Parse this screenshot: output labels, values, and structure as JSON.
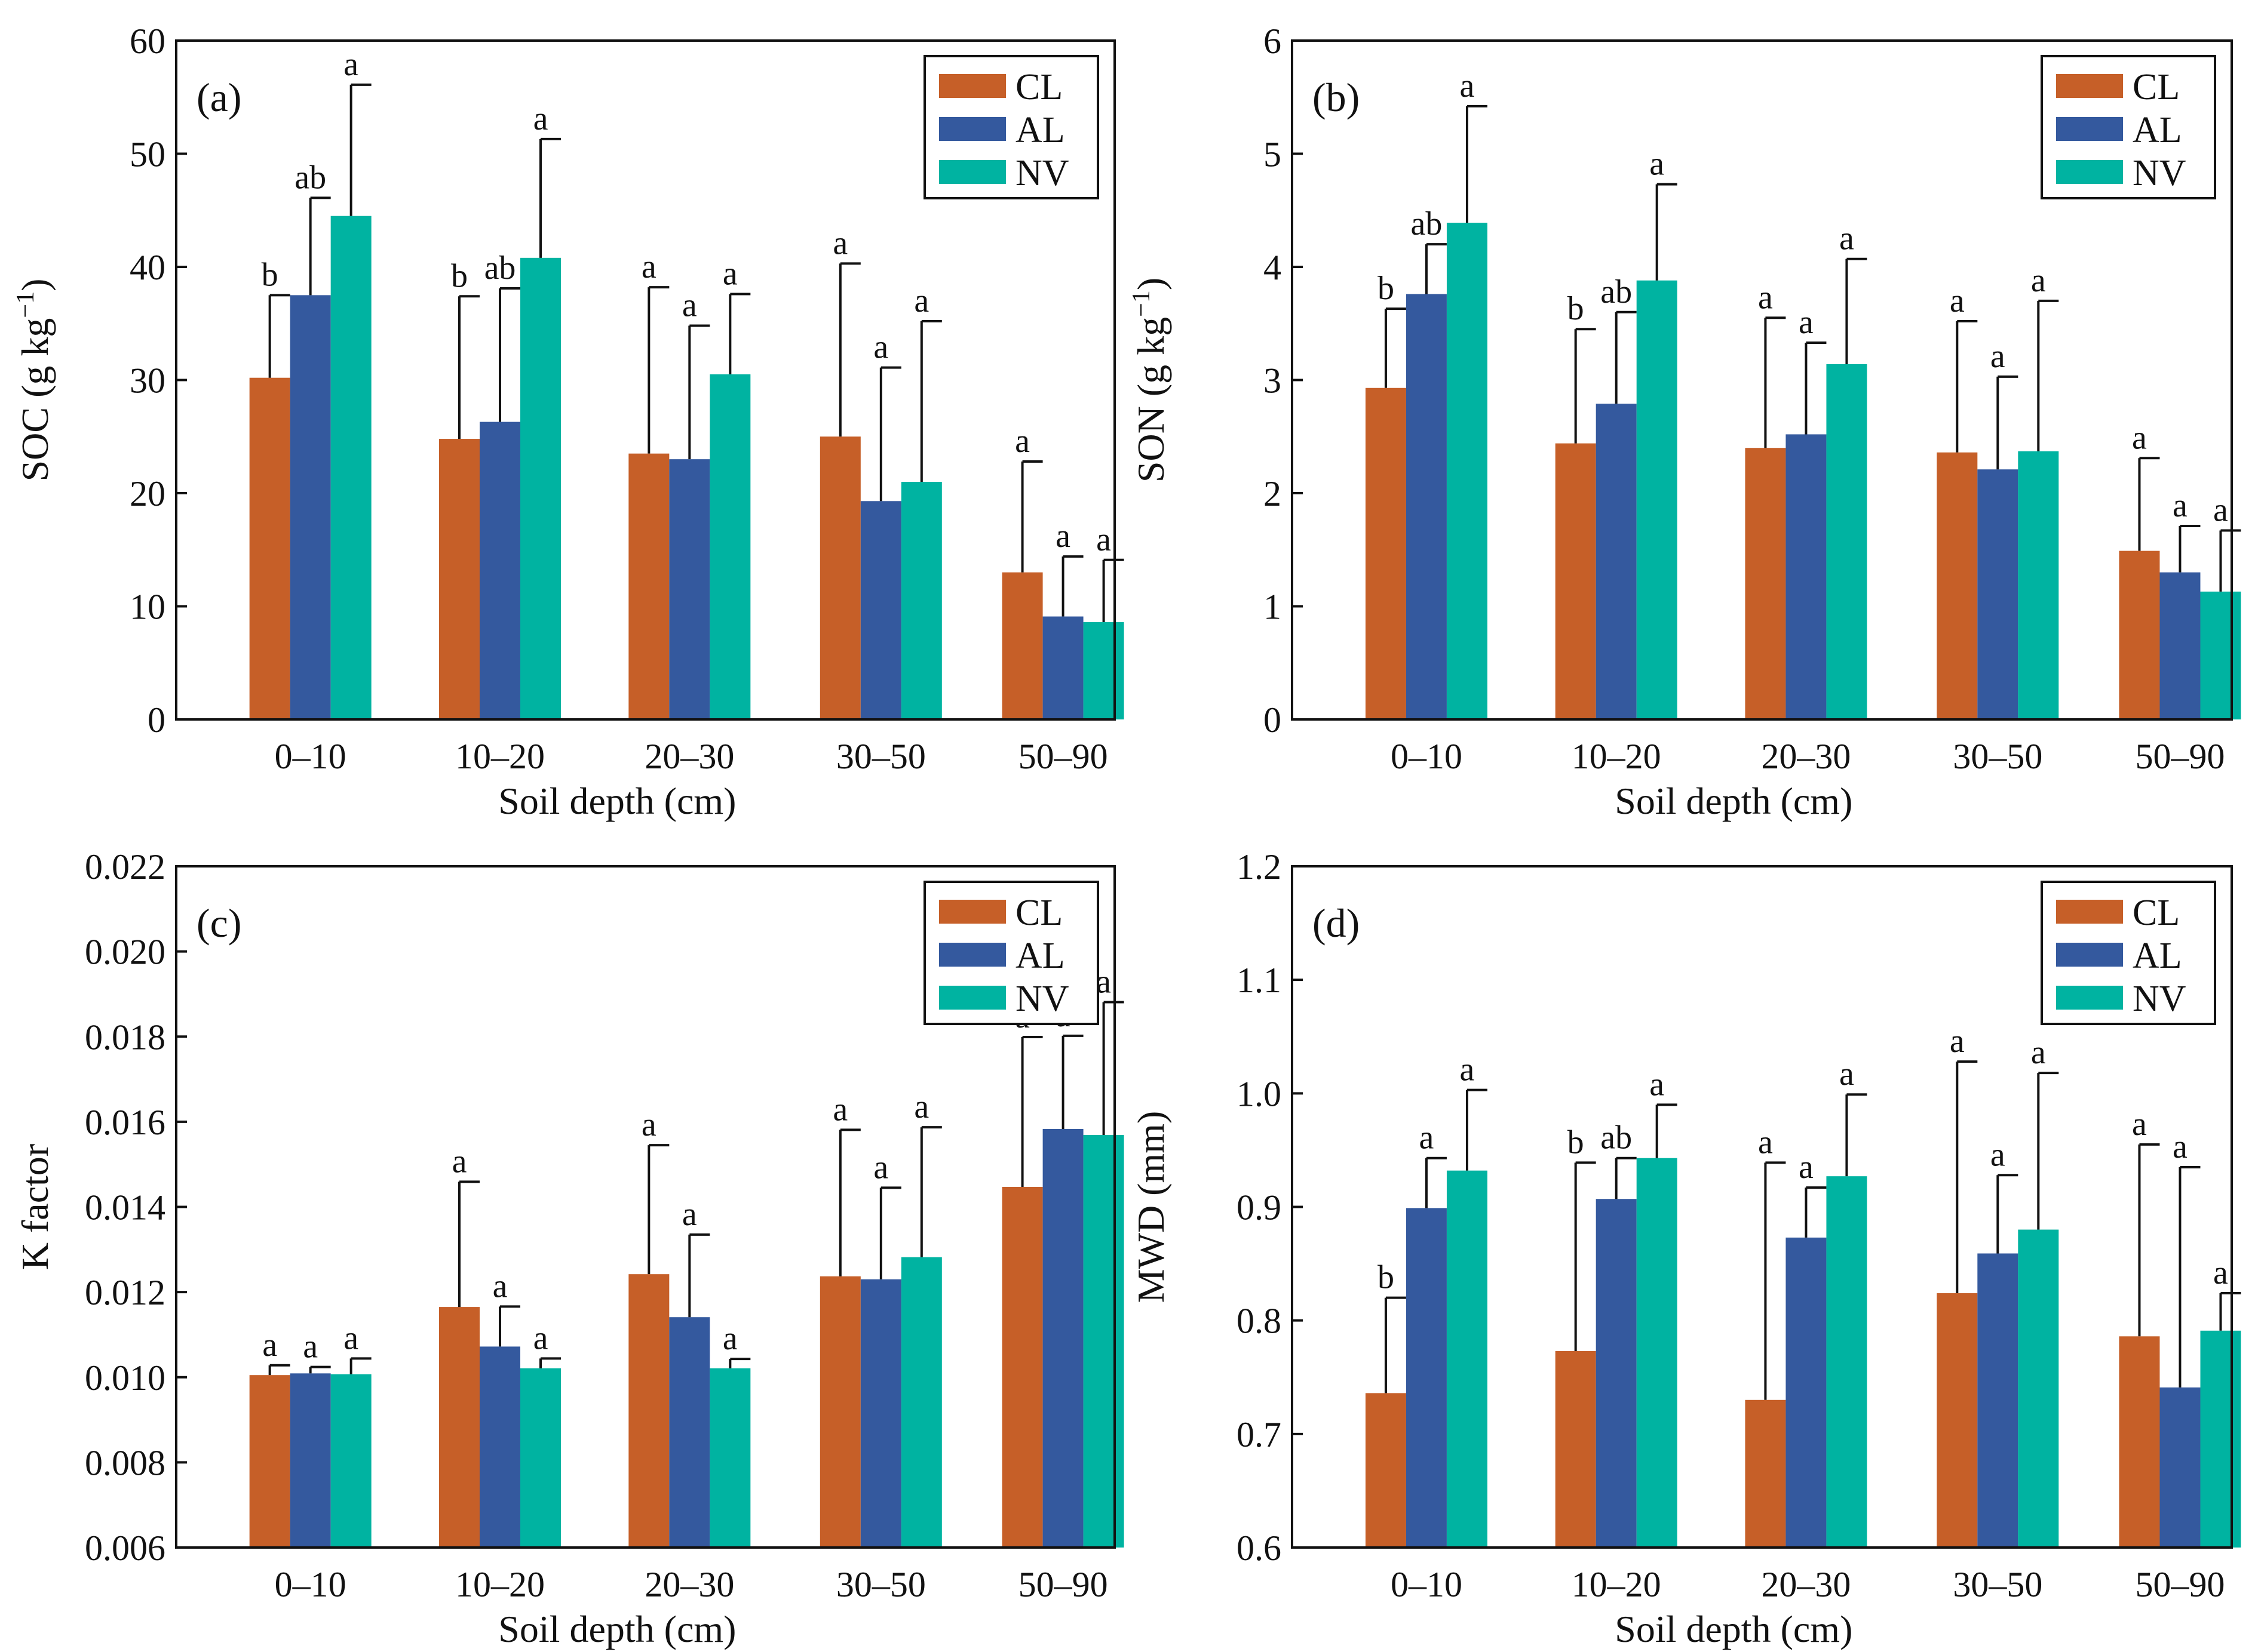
{
  "colors": {
    "CL": "#c65f28",
    "AL": "#34599e",
    "NV": "#00b3a1"
  },
  "chart_data": [
    {
      "id": "a",
      "type": "bar",
      "label": "(a)",
      "categories": [
        "0–10",
        "10–20",
        "20–30",
        "30–50",
        "50–90"
      ],
      "xlabel": "Soil depth (cm)",
      "ylabel": {
        "main": "SOC (g kg",
        "sup": "−1",
        "close": ")"
      },
      "ylim": [
        0,
        60
      ],
      "yticks": [
        0,
        10,
        20,
        30,
        40,
        50,
        60
      ],
      "ytick_labels": [
        "0",
        "10",
        "20",
        "30",
        "40",
        "50",
        "60"
      ],
      "legend": [
        "CL",
        "AL",
        "NV"
      ],
      "legend_position": "top-right",
      "series": [
        {
          "name": "CL",
          "values": [
            30.2,
            24.8,
            23.5,
            25.0,
            13.0
          ],
          "err": [
            37.5,
            37.4,
            38.2,
            40.3,
            22.8
          ],
          "sig": [
            "b",
            "b",
            "a",
            "a",
            "a"
          ]
        },
        {
          "name": "AL",
          "values": [
            37.5,
            26.3,
            23.0,
            19.3,
            9.1
          ],
          "err": [
            46.1,
            38.1,
            34.8,
            31.1,
            14.4
          ],
          "sig": [
            "ab",
            "ab",
            "a",
            "a",
            "a"
          ]
        },
        {
          "name": "NV",
          "values": [
            44.5,
            40.8,
            30.5,
            21.0,
            8.6
          ],
          "err": [
            56.1,
            51.3,
            37.6,
            35.2,
            14.1
          ],
          "sig": [
            "a",
            "a",
            "a",
            "a",
            "a"
          ]
        }
      ]
    },
    {
      "id": "b",
      "type": "bar",
      "label": "(b)",
      "categories": [
        "0–10",
        "10–20",
        "20–30",
        "30–50",
        "50–90"
      ],
      "xlabel": "Soil depth (cm)",
      "ylabel": {
        "main": "SON (g kg",
        "sup": "−1",
        "close": ")"
      },
      "ylim": [
        0,
        6
      ],
      "yticks": [
        0,
        1,
        2,
        3,
        4,
        5,
        6
      ],
      "ytick_labels": [
        "0",
        "1",
        "2",
        "3",
        "4",
        "5",
        "6"
      ],
      "legend": [
        "CL",
        "AL",
        "NV"
      ],
      "legend_position": "top-right",
      "series": [
        {
          "name": "CL",
          "values": [
            2.93,
            2.44,
            2.4,
            2.36,
            1.49
          ],
          "err": [
            3.63,
            3.45,
            3.55,
            3.52,
            2.31
          ],
          "sig": [
            "b",
            "b",
            "a",
            "a",
            "a"
          ]
        },
        {
          "name": "AL",
          "values": [
            3.76,
            2.79,
            2.52,
            2.21,
            1.3
          ],
          "err": [
            4.2,
            3.6,
            3.33,
            3.03,
            1.71
          ],
          "sig": [
            "ab",
            "ab",
            "a",
            "a",
            "a"
          ]
        },
        {
          "name": "NV",
          "values": [
            4.39,
            3.88,
            3.14,
            2.37,
            1.13
          ],
          "err": [
            5.42,
            4.73,
            4.07,
            3.7,
            1.67
          ],
          "sig": [
            "a",
            "a",
            "a",
            "a",
            "a"
          ]
        }
      ]
    },
    {
      "id": "c",
      "type": "bar",
      "label": "(c)",
      "categories": [
        "0–10",
        "10–20",
        "20–30",
        "30–50",
        "50–90"
      ],
      "xlabel": "Soil depth (cm)",
      "ylabel": {
        "main": "K factor",
        "sup": "",
        "close": ""
      },
      "ylim": [
        0.006,
        0.022
      ],
      "yticks": [
        0.006,
        0.008,
        0.01,
        0.012,
        0.014,
        0.016,
        0.018,
        0.02,
        0.022
      ],
      "ytick_labels": [
        "0.006",
        "0.008",
        "0.010",
        "0.012",
        "0.014",
        "0.016",
        "0.018",
        "0.020",
        "0.022"
      ],
      "legend": [
        "CL",
        "AL",
        "NV"
      ],
      "legend_position": "top-right",
      "series": [
        {
          "name": "CL",
          "values": [
            0.01005,
            0.01165,
            0.01242,
            0.01237,
            0.01447
          ],
          "err": [
            0.01028,
            0.01459,
            0.01545,
            0.01581,
            0.01799
          ],
          "sig": [
            "a",
            "a",
            "a",
            "a",
            "a"
          ]
        },
        {
          "name": "AL",
          "values": [
            0.01009,
            0.01072,
            0.01141,
            0.0123,
            0.01583
          ],
          "err": [
            0.01024,
            0.01166,
            0.01335,
            0.01445,
            0.01802
          ],
          "sig": [
            "a",
            "a",
            "a",
            "a",
            "a"
          ]
        },
        {
          "name": "NV",
          "values": [
            0.01007,
            0.01021,
            0.01021,
            0.01282,
            0.01569
          ],
          "err": [
            0.01044,
            0.01044,
            0.01043,
            0.01587,
            0.01881
          ],
          "sig": [
            "a",
            "a",
            "a",
            "a",
            "a"
          ]
        }
      ]
    },
    {
      "id": "d",
      "type": "bar",
      "label": "(d)",
      "categories": [
        "0–10",
        "10–20",
        "20–30",
        "30–50",
        "50–90"
      ],
      "xlabel": "Soil depth (cm)",
      "ylabel": {
        "main": "MWD (mm)",
        "sup": "",
        "close": ""
      },
      "ylim": [
        0.6,
        1.2
      ],
      "yticks": [
        0.6,
        0.7,
        0.8,
        0.9,
        1.0,
        1.1,
        1.2
      ],
      "ytick_labels": [
        "0.6",
        "0.7",
        "0.8",
        "0.9",
        "1.0",
        "1.1",
        "1.2"
      ],
      "legend": [
        "CL",
        "AL",
        "NV"
      ],
      "legend_position": "top-right",
      "series": [
        {
          "name": "CL",
          "values": [
            0.736,
            0.773,
            0.73,
            0.824,
            0.786
          ],
          "err": [
            0.82,
            0.939,
            0.939,
            1.028,
            0.955
          ],
          "sig": [
            "b",
            "b",
            "a",
            "a",
            "a"
          ]
        },
        {
          "name": "AL",
          "values": [
            0.899,
            0.907,
            0.873,
            0.859,
            0.741
          ],
          "err": [
            0.943,
            0.943,
            0.917,
            0.928,
            0.935
          ],
          "sig": [
            "a",
            "ab",
            "a",
            "a",
            "a"
          ]
        },
        {
          "name": "NV",
          "values": [
            0.932,
            0.943,
            0.927,
            0.88,
            0.791
          ],
          "err": [
            1.003,
            0.99,
            0.999,
            1.018,
            0.824
          ],
          "sig": [
            "a",
            "a",
            "a",
            "a",
            "a"
          ]
        }
      ]
    }
  ]
}
